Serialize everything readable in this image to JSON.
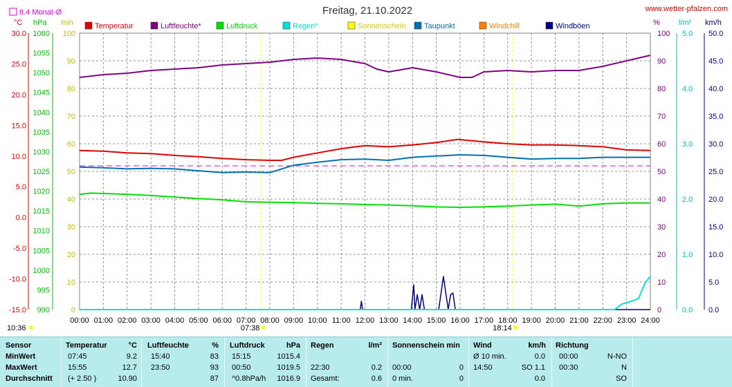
{
  "header": {
    "title": "Freitag, 21.10.2022",
    "website": "www.wetter-pfalzen.com",
    "avg_label": "8.4 Monat-Ø",
    "unit_temp": "°C",
    "unit_press": "hPa",
    "unit_min": "min",
    "unit_pct": "%",
    "unit_rain": "l/m²",
    "unit_wind": "km/h"
  },
  "legend": [
    {
      "label": "Temperatur",
      "color": "#e00000"
    },
    {
      "label": "Luftfeuchte*",
      "color": "#800080"
    },
    {
      "label": "Luftdruck",
      "color": "#00e000"
    },
    {
      "label": "Regen*",
      "color": "#00e0e0"
    },
    {
      "label": "Sonnenschein",
      "color": "#ffff00"
    },
    {
      "label": "Taupunkt",
      "color": "#0070b0"
    },
    {
      "label": "Windchill",
      "color": "#ff8000"
    },
    {
      "label": "Windböen",
      "color": "#000080"
    }
  ],
  "axes": {
    "temp_ticks": [
      "30.0",
      "25.0",
      "20.0",
      "15.0",
      "10.0",
      "5.0",
      "0.0",
      "-5.0",
      "-10.0",
      "-15.0"
    ],
    "press_ticks": [
      "1060",
      "1055",
      "1050",
      "1045",
      "1040",
      "1035",
      "1030",
      "1025",
      "1020",
      "1015",
      "1010",
      "1005",
      "1000",
      "995",
      "990"
    ],
    "min_ticks": [
      "100",
      "90",
      "80",
      "70",
      "60",
      "50",
      "40",
      "30",
      "20",
      "10",
      "0"
    ],
    "pct_ticks": [
      "100",
      "90",
      "80",
      "70",
      "60",
      "50",
      "40",
      "30",
      "20",
      "10",
      "0"
    ],
    "rain_ticks": [
      "5.0",
      "4.0",
      "3.0",
      "2.0",
      "1.0",
      "0.0"
    ],
    "wind_ticks": [
      "50.0",
      "45.0",
      "40.0",
      "35.0",
      "30.0",
      "25.0",
      "20.0",
      "15.0",
      "10.0",
      "5.0",
      "0.0"
    ],
    "time_ticks": [
      "00:00",
      "01:00",
      "02:00",
      "03:00",
      "04:00",
      "05:00",
      "06:00",
      "07:00",
      "08:00",
      "09:00",
      "10:00",
      "11:00",
      "12:00",
      "13:00",
      "14:00",
      "15:00",
      "16:00",
      "17:00",
      "18:00",
      "19:00",
      "20:00",
      "21:00",
      "22:00",
      "23:00",
      "24:00"
    ],
    "sunshine_duration": "10:36",
    "sunrise": "07:38",
    "sunset": "18:14"
  },
  "chart_data": {
    "type": "line",
    "title": "Freitag, 21.10.2022",
    "x_unit": "hours",
    "xlim": [
      0,
      24
    ],
    "month_avg_temp": 8.4,
    "series": [
      {
        "name": "Temperatur",
        "axis": "temp",
        "color": "#e00000",
        "x": [
          0,
          1,
          2,
          3,
          4,
          5,
          6,
          7,
          8,
          8.5,
          9,
          10,
          11,
          12,
          13,
          14,
          15,
          15.9,
          17,
          18,
          19,
          20,
          21,
          22,
          23,
          24
        ],
        "values": [
          10.9,
          10.8,
          10.5,
          10.4,
          10.1,
          9.9,
          9.6,
          9.4,
          9.3,
          9.3,
          9.8,
          10.5,
          11.2,
          11.7,
          11.5,
          11.8,
          12.2,
          12.7,
          12.3,
          12.0,
          11.8,
          11.8,
          11.7,
          11.5,
          11.0,
          10.9
        ]
      },
      {
        "name": "Luftfeuchte*",
        "axis": "pct",
        "color": "#800080",
        "x": [
          0,
          1,
          2,
          3,
          4,
          5,
          6,
          7,
          8,
          9,
          10,
          11,
          12,
          12.5,
          13,
          14,
          15,
          16,
          16.5,
          17,
          18,
          19,
          20,
          21,
          22,
          23,
          24
        ],
        "values": [
          84,
          85,
          85.5,
          86.5,
          87,
          87.5,
          88.5,
          89,
          89.5,
          90.5,
          91,
          90.5,
          89,
          87,
          86,
          87.5,
          86,
          84,
          84,
          86,
          86.5,
          86,
          86.5,
          86.5,
          88,
          90,
          92
        ]
      },
      {
        "name": "Luftdruck",
        "axis": "press",
        "color": "#00e000",
        "x": [
          0,
          0.5,
          1,
          2,
          3,
          4,
          5,
          6,
          7,
          8,
          9,
          10,
          11,
          12,
          13,
          14,
          15,
          16,
          17,
          18,
          19,
          20,
          21,
          22,
          23,
          24
        ],
        "values": [
          1019.2,
          1019.5,
          1019.4,
          1019.2,
          1018.9,
          1018.5,
          1018.1,
          1017.8,
          1017.3,
          1017.2,
          1017.1,
          1016.9,
          1016.8,
          1016.6,
          1016.5,
          1016.3,
          1016.0,
          1015.9,
          1016.0,
          1016.2,
          1016.5,
          1016.7,
          1016.2,
          1016.8,
          1017.0,
          1017.0
        ]
      },
      {
        "name": "Taupunkt",
        "axis": "temp",
        "color": "#0070b0",
        "x": [
          0,
          1,
          2,
          3,
          4,
          5,
          6,
          7,
          8,
          9,
          10,
          11,
          12,
          13,
          14,
          15,
          16,
          17,
          18,
          19,
          20,
          21,
          22,
          23,
          24
        ],
        "values": [
          8.2,
          8.1,
          7.9,
          8.0,
          7.9,
          7.6,
          7.3,
          7.4,
          7.3,
          8.5,
          9.0,
          9.4,
          9.5,
          9.3,
          9.8,
          10.0,
          10.2,
          10.1,
          9.8,
          9.5,
          9.6,
          9.6,
          9.8,
          9.8,
          9.8
        ]
      },
      {
        "name": "Windböen",
        "axis": "wind",
        "color": "#000080",
        "x": [
          0,
          11.8,
          11.85,
          11.9,
          11.95,
          14,
          13.95,
          14.05,
          14.1,
          14.2,
          14.3,
          14.4,
          14.5,
          15.1,
          15.3,
          15.5,
          15.6,
          15.7,
          15.8,
          24
        ],
        "values": [
          0,
          0,
          1.5,
          0,
          0,
          0,
          0,
          4.5,
          0,
          2.7,
          0,
          2.7,
          0,
          0,
          6.0,
          0,
          2.7,
          3.0,
          0,
          0
        ]
      },
      {
        "name": "Regen*",
        "axis": "rain",
        "color": "#00e0e0",
        "x": [
          0,
          22.5,
          22.8,
          23.2,
          23.5,
          23.8,
          24
        ],
        "values": [
          0,
          0,
          0.1,
          0.15,
          0.2,
          0.5,
          0.6
        ]
      }
    ],
    "ylim_temp": [
      -15,
      30
    ],
    "ylim_press": [
      990,
      1060
    ],
    "ylim_pct": [
      0,
      100
    ],
    "ylim_rain": [
      0,
      5
    ],
    "ylim_wind": [
      0,
      50
    ],
    "grid": true,
    "legend_position": "top"
  },
  "stats": {
    "headers": {
      "sensor": "Sensor",
      "temp": "Temperatur",
      "temp_unit": "°C",
      "hum": "Luftfeuchte",
      "hum_unit": "%",
      "press": "Luftdruck",
      "press_unit": "hPa",
      "rain": "Regen",
      "rain_unit": "l/m²",
      "sun": "Sonnenschein min",
      "wind": "Wind",
      "wind_unit": "km/h",
      "dir": "Richtung"
    },
    "rows": [
      {
        "label": "MinWert",
        "temp_time": "07:45",
        "temp_val": "9.2",
        "hum_time": "15:40",
        "hum_val": "83",
        "press_time": "15:15",
        "press_val": "1015.4",
        "rain_time": "",
        "rain_val": "",
        "sun_time": "",
        "sun_val": "",
        "wind_time": "Ø 10 min.",
        "wind_val": "0.0",
        "dir_time": "00:00",
        "dir_val": "N-NO"
      },
      {
        "label": "MaxWert",
        "temp_time": "15:55",
        "temp_val": "12.7",
        "hum_time": "23:50",
        "hum_val": "93",
        "press_time": "00:50",
        "press_val": "1019.5",
        "rain_time": "22:30",
        "rain_val": "0.2",
        "sun_time": "00:00",
        "sun_val": "0",
        "wind_time": "14:50",
        "wind_val": "SO 1.1",
        "dir_time": "00:30",
        "dir_val": "N"
      },
      {
        "label": "Durchschnitt",
        "temp_time": "(+ 2.50 )",
        "temp_val": "10.90",
        "hum_time": "",
        "hum_val": "87",
        "press_time": "^0.8hPa/h",
        "press_val": "1016.9",
        "rain_time": "Gesamt:",
        "rain_val": "0.6",
        "sun_time": "0 min.",
        "sun_val": "0",
        "wind_time": "",
        "wind_val": "0.0",
        "dir_time": "",
        "dir_val": "SO"
      }
    ]
  }
}
